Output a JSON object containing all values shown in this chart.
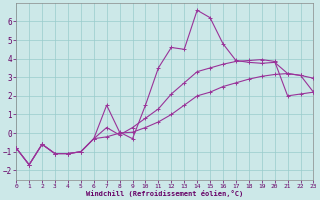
{
  "xlabel": "Windchill (Refroidissement éolien,°C)",
  "background_color": "#cce8e8",
  "grid_color": "#99cccc",
  "line_color": "#993399",
  "xlim": [
    0,
    23
  ],
  "ylim": [
    -2.5,
    7.0
  ],
  "xticks": [
    0,
    1,
    2,
    3,
    4,
    5,
    6,
    7,
    8,
    9,
    10,
    11,
    12,
    13,
    14,
    15,
    16,
    17,
    18,
    19,
    20,
    21,
    22,
    23
  ],
  "yticks": [
    -2,
    -1,
    0,
    1,
    2,
    3,
    4,
    5,
    6
  ],
  "line1_x": [
    0,
    1,
    2,
    3,
    4,
    5,
    6,
    7,
    8,
    9,
    10,
    11,
    12,
    13,
    14,
    15,
    16,
    17,
    18,
    19,
    20,
    21,
    22,
    23
  ],
  "line1_y": [
    -0.8,
    -1.7,
    -0.6,
    -1.1,
    -1.1,
    -1.0,
    -0.3,
    -0.2,
    0.0,
    0.05,
    0.3,
    0.6,
    1.0,
    1.5,
    2.0,
    2.2,
    2.5,
    2.7,
    2.9,
    3.05,
    3.15,
    3.2,
    3.1,
    2.95
  ],
  "line2_x": [
    0,
    1,
    2,
    3,
    4,
    5,
    6,
    7,
    8,
    9,
    10,
    11,
    12,
    13,
    14,
    15,
    16,
    17,
    18,
    19,
    20,
    21,
    22,
    23
  ],
  "line2_y": [
    -0.8,
    -1.7,
    -0.6,
    -1.1,
    -1.1,
    -1.0,
    -0.3,
    1.5,
    0.05,
    -0.3,
    1.5,
    3.5,
    4.6,
    4.5,
    6.6,
    6.2,
    4.8,
    3.9,
    3.8,
    3.75,
    3.8,
    3.2,
    3.1,
    2.2
  ],
  "line3_x": [
    0,
    1,
    2,
    3,
    4,
    5,
    6,
    7,
    8,
    9,
    10,
    11,
    12,
    13,
    14,
    15,
    16,
    17,
    18,
    19,
    20,
    21,
    22,
    23
  ],
  "line3_y": [
    -0.8,
    -1.7,
    -0.6,
    -1.1,
    -1.1,
    -1.0,
    -0.3,
    0.3,
    -0.1,
    0.3,
    0.8,
    1.3,
    2.1,
    2.7,
    3.3,
    3.5,
    3.7,
    3.85,
    3.9,
    3.95,
    3.85,
    2.0,
    2.1,
    2.2
  ]
}
